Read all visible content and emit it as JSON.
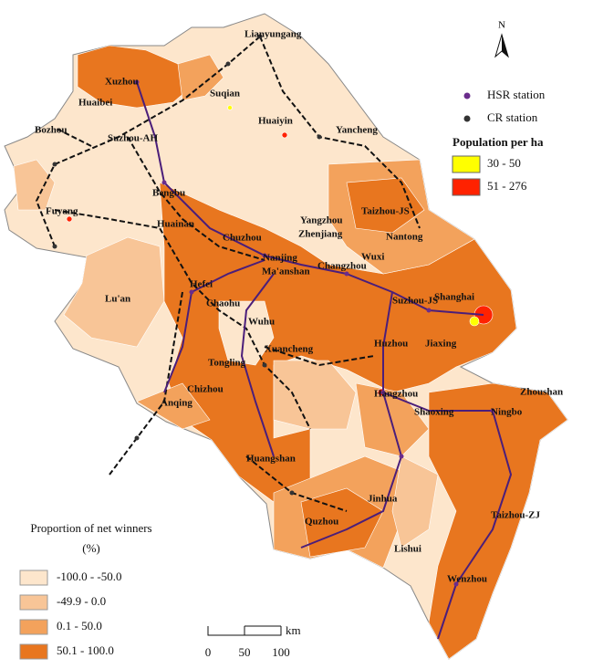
{
  "north": "N",
  "stations": [
    {
      "label": "HSR station",
      "color": "#6a2c8c"
    },
    {
      "label": "CR station",
      "color": "#333333"
    }
  ],
  "population": {
    "title": "Population per ha",
    "classes": [
      {
        "label": "30 - 50",
        "color": "#ffff00"
      },
      {
        "label": "51 - 276",
        "color": "#ff2200"
      }
    ]
  },
  "winners": {
    "title": "Proportion of net winners",
    "unit": "(%)",
    "classes": [
      {
        "label": "-100.0 - -50.0",
        "color": "#fde6cc"
      },
      {
        "label": "-49.9 - 0.0",
        "color": "#f8c597"
      },
      {
        "label": "0.1 - 50.0",
        "color": "#f3a25c"
      },
      {
        "label": "50.1 - 100.0",
        "color": "#e8761f"
      }
    ]
  },
  "scale": {
    "ticks": [
      "0",
      "50",
      "100"
    ],
    "unit": "km"
  },
  "cities": [
    "Lianyungang",
    "Xuzhou",
    "Suqian",
    "Huaibei",
    "Huaiyin",
    "Bozhou",
    "Suzhou-AH",
    "Yancheng",
    "Bengbu",
    "Taizhou-JS",
    "Fuyang",
    "Huainan",
    "Yangzhou",
    "Zhenjiang",
    "Chuzhou",
    "Nantong",
    "Nanjing",
    "Changzhou",
    "Wuxi",
    "Ma'anshan",
    "Hefei",
    "Lu'an",
    "Chaohu",
    "Suzhou-JS",
    "Shanghai",
    "Wuhu",
    "Huzhou",
    "Jiaxing",
    "Xuancheng",
    "Tongling",
    "Chizhou",
    "Zhoushan",
    "Hangzhou",
    "Anqing",
    "Shaoxing",
    "Ningbo",
    "Huangshan",
    "Jinhua",
    "Quzhou",
    "Taizhou-ZJ",
    "Lishui",
    "Wenzhou"
  ]
}
